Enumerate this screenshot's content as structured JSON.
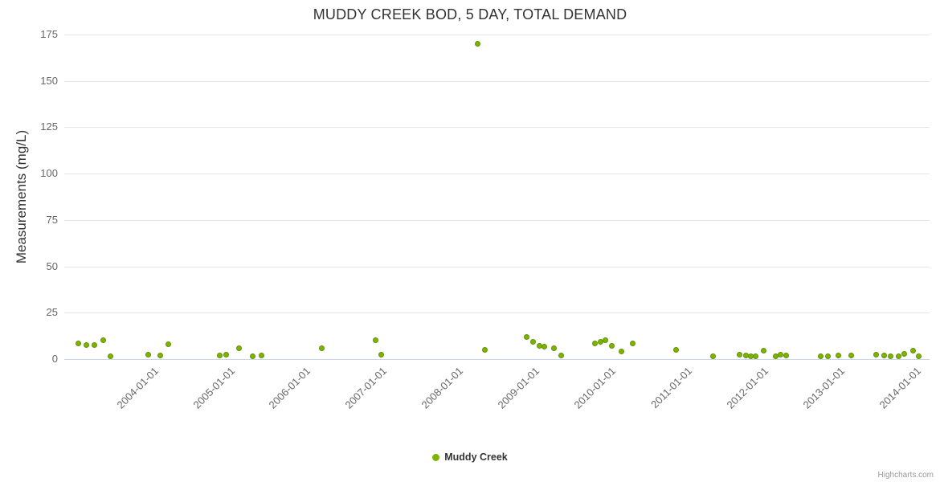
{
  "chart_data": {
    "type": "scatter",
    "title": "MUDDY CREEK BOD, 5 DAY, TOTAL DEMAND",
    "xlabel": "",
    "ylabel": "Measurements (mg/L)",
    "ylim": [
      0,
      175
    ],
    "yticks": [
      0,
      25,
      50,
      75,
      100,
      125,
      150,
      175
    ],
    "xlim": [
      2002.85,
      2014.2
    ],
    "xticks": [
      2004,
      2005,
      2006,
      2007,
      2008,
      2009,
      2010,
      2011,
      2012,
      2013,
      2014
    ],
    "xtick_labels": [
      "2004-01-01",
      "2005-01-01",
      "2006-01-01",
      "2007-01-01",
      "2008-01-01",
      "2009-01-01",
      "2010-01-01",
      "2011-01-01",
      "2012-01-01",
      "2013-01-01",
      "2014-01-01"
    ],
    "grid": true,
    "legend_position": "bottom-center",
    "series": [
      {
        "name": "Muddy Creek",
        "color": "#7cb500",
        "marker_border": "#639103",
        "points": [
          [
            2003.03,
            8.5
          ],
          [
            2003.14,
            7.5
          ],
          [
            2003.24,
            7.5
          ],
          [
            2003.36,
            10
          ],
          [
            2003.46,
            1.5
          ],
          [
            2003.95,
            2.5
          ],
          [
            2004.11,
            2
          ],
          [
            2004.21,
            8
          ],
          [
            2004.89,
            2
          ],
          [
            2004.97,
            2.5
          ],
          [
            2005.14,
            6
          ],
          [
            2005.32,
            1.5
          ],
          [
            2005.44,
            2
          ],
          [
            2006.23,
            6
          ],
          [
            2006.93,
            10
          ],
          [
            2007.01,
            2.5
          ],
          [
            2008.27,
            170
          ],
          [
            2008.37,
            5
          ],
          [
            2008.92,
            12
          ],
          [
            2009.0,
            9.5
          ],
          [
            2009.08,
            7
          ],
          [
            2009.15,
            6.5
          ],
          [
            2009.27,
            6
          ],
          [
            2009.37,
            2
          ],
          [
            2009.81,
            8.5
          ],
          [
            2009.88,
            9.5
          ],
          [
            2009.95,
            10
          ],
          [
            2010.03,
            7
          ],
          [
            2010.16,
            4
          ],
          [
            2010.31,
            8.5
          ],
          [
            2010.87,
            5
          ],
          [
            2011.36,
            1.5
          ],
          [
            2011.71,
            2.5
          ],
          [
            2011.79,
            2
          ],
          [
            2011.85,
            1.5
          ],
          [
            2011.92,
            1.5
          ],
          [
            2012.02,
            4.5
          ],
          [
            2012.18,
            1.5
          ],
          [
            2012.25,
            2.5
          ],
          [
            2012.32,
            2
          ],
          [
            2012.77,
            1.5
          ],
          [
            2012.87,
            1.5
          ],
          [
            2013.0,
            2
          ],
          [
            2013.17,
            2
          ],
          [
            2013.5,
            2.5
          ],
          [
            2013.6,
            2
          ],
          [
            2013.69,
            1.5
          ],
          [
            2013.79,
            1.5
          ],
          [
            2013.87,
            3
          ],
          [
            2013.98,
            4.5
          ],
          [
            2014.06,
            1.5
          ]
        ]
      }
    ]
  },
  "legend": {
    "items": [
      {
        "label": "Muddy Creek",
        "color": "#7cb500"
      }
    ]
  },
  "credits": {
    "label": "Highcharts.com"
  },
  "colors": {
    "background": "#ffffff",
    "title": "#333333",
    "tick_label": "#666666",
    "grid": "#e6e6e6",
    "axis_line": "#ccd6eb"
  }
}
